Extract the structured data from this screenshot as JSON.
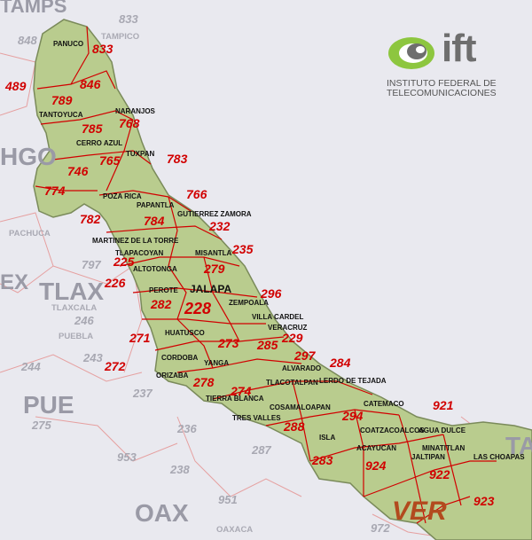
{
  "logo": {
    "text": "ift",
    "line1": "INSTITUTO FEDERAL DE",
    "line2": "TELECOMUNICACIONES",
    "accent_green": "#8dc63f",
    "accent_gray": "#6e6e6e"
  },
  "colors": {
    "state_fill": "#b9cc8e",
    "border_red": "#d10000",
    "number_red": "#d10000",
    "neighbor_text": "#9a9aa6",
    "background": "#e9e9ef"
  },
  "states": {
    "hgo": "HGO",
    "tlax": "TLAX",
    "pue": "PUE",
    "oax": "OAX",
    "ver": "VER",
    "tamps": "TAMPS",
    "tab": "TAB",
    "ex": "EX"
  },
  "area_codes": [
    "833",
    "846",
    "789",
    "489",
    "768",
    "785",
    "783",
    "765",
    "746",
    "774",
    "766",
    "782",
    "784",
    "232",
    "225",
    "235",
    "226",
    "279",
    "296",
    "228",
    "282",
    "229",
    "271",
    "273",
    "285",
    "297",
    "284",
    "272",
    "278",
    "274",
    "288",
    "294",
    "921",
    "283",
    "924",
    "922",
    "923"
  ],
  "neighbor_codes": [
    "833",
    "848",
    "797",
    "246",
    "244",
    "243",
    "237",
    "275",
    "236",
    "238",
    "287",
    "953",
    "951",
    "972"
  ],
  "cities": [
    "PANUCO",
    "TAMPICO",
    "TANTOYUCA",
    "NARANJOS",
    "CERRO AZUL",
    "TUXPAN",
    "POZA RICA",
    "PAPANTLA",
    "GUTIERREZ ZAMORA",
    "MARTINEZ DE LA TORRE",
    "TLAPACOYAN",
    "ALTOTONGA",
    "MISANTLA",
    "PEROTE",
    "JALAPA",
    "ZEMPOALA",
    "VILLA CARDEL",
    "VERACRUZ",
    "HUATUSCO",
    "CORDOBA",
    "ORIZABA",
    "YANGA",
    "ALVARADO",
    "TLACOTALPAN",
    "LERDO DE TEJADA",
    "CATEMACO",
    "TIERRA BLANCA",
    "TRES VALLES",
    "COSAMALOAPAN",
    "COATZACOALCOS",
    "AGUA DULCE",
    "ISLA",
    "ACAYUCAN",
    "MINATITLAN",
    "LAS CHOAPAS",
    "JALTIPAN",
    "PACHUCA",
    "TLAXCALA",
    "PUEBLA",
    "OAXACA"
  ]
}
